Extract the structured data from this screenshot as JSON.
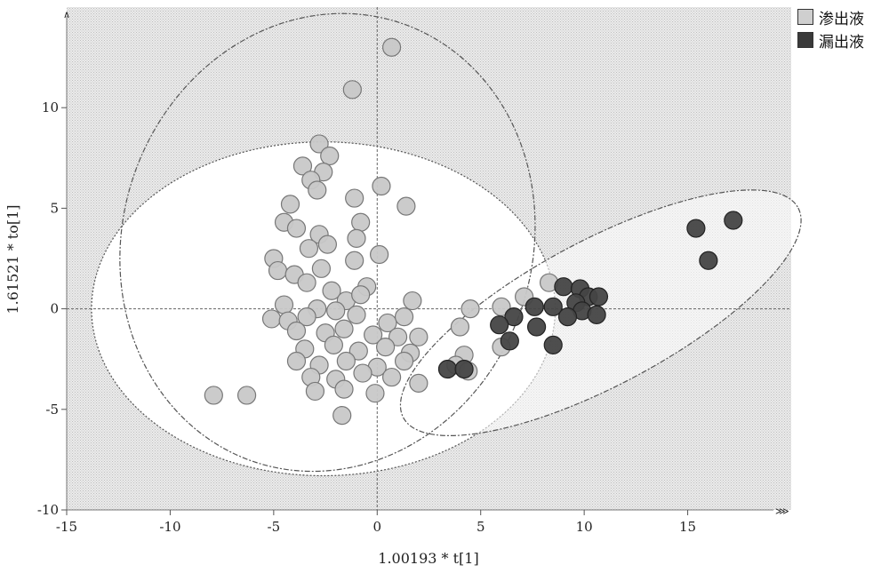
{
  "chart_data": {
    "type": "scatter",
    "title": "",
    "xlabel": "1.00193 * t[1]",
    "ylabel": "1.61521 * to[1]",
    "xlim": [
      -15,
      20
    ],
    "ylim": [
      -10,
      15
    ],
    "xticks": [
      -15,
      -10,
      -5,
      0,
      5,
      10,
      15
    ],
    "yticks": [
      -10,
      -5,
      0,
      5,
      10
    ],
    "grid": false,
    "legend_position": "top-right",
    "series": [
      {
        "name": "渗出液",
        "color": "#c8c8c8",
        "points": [
          [
            0.7,
            13.0
          ],
          [
            -1.2,
            10.9
          ],
          [
            -2.8,
            8.2
          ],
          [
            -2.3,
            7.6
          ],
          [
            -3.6,
            7.1
          ],
          [
            -2.6,
            6.8
          ],
          [
            -3.2,
            6.4
          ],
          [
            -2.9,
            5.9
          ],
          [
            -4.2,
            5.2
          ],
          [
            0.2,
            6.1
          ],
          [
            1.4,
            5.1
          ],
          [
            -1.1,
            5.5
          ],
          [
            -4.5,
            4.3
          ],
          [
            -3.9,
            4.0
          ],
          [
            -0.8,
            4.3
          ],
          [
            -2.8,
            3.7
          ],
          [
            -1.0,
            3.5
          ],
          [
            -2.4,
            3.2
          ],
          [
            -3.3,
            3.0
          ],
          [
            -5.0,
            2.5
          ],
          [
            -4.8,
            1.9
          ],
          [
            -4.0,
            1.7
          ],
          [
            -2.7,
            2.0
          ],
          [
            -1.1,
            2.4
          ],
          [
            0.1,
            2.7
          ],
          [
            -3.4,
            1.3
          ],
          [
            -2.2,
            0.9
          ],
          [
            -0.5,
            1.1
          ],
          [
            1.7,
            0.4
          ],
          [
            -4.5,
            0.2
          ],
          [
            -2.9,
            0.0
          ],
          [
            -1.5,
            0.4
          ],
          [
            -0.8,
            0.7
          ],
          [
            -3.4,
            -0.4
          ],
          [
            -2.0,
            -0.1
          ],
          [
            -5.1,
            -0.5
          ],
          [
            -4.3,
            -0.6
          ],
          [
            -1.0,
            -0.3
          ],
          [
            0.5,
            -0.7
          ],
          [
            1.3,
            -0.4
          ],
          [
            -3.9,
            -1.1
          ],
          [
            -2.5,
            -1.2
          ],
          [
            -1.6,
            -1.0
          ],
          [
            -0.2,
            -1.3
          ],
          [
            1.0,
            -1.4
          ],
          [
            2.0,
            -1.4
          ],
          [
            -3.5,
            -2.0
          ],
          [
            -2.1,
            -1.8
          ],
          [
            -0.9,
            -2.1
          ],
          [
            0.4,
            -1.9
          ],
          [
            1.6,
            -2.2
          ],
          [
            -3.9,
            -2.6
          ],
          [
            -2.8,
            -2.8
          ],
          [
            -1.5,
            -2.6
          ],
          [
            0.0,
            -2.9
          ],
          [
            1.3,
            -2.6
          ],
          [
            -3.2,
            -3.4
          ],
          [
            -2.0,
            -3.5
          ],
          [
            -0.7,
            -3.2
          ],
          [
            0.7,
            -3.4
          ],
          [
            2.0,
            -3.7
          ],
          [
            -3.0,
            -4.1
          ],
          [
            -1.6,
            -4.0
          ],
          [
            -0.1,
            -4.2
          ],
          [
            -1.7,
            -5.3
          ],
          [
            -7.9,
            -4.3
          ],
          [
            -6.3,
            -4.3
          ],
          [
            4.0,
            -0.9
          ],
          [
            4.2,
            -2.3
          ],
          [
            3.8,
            -2.8
          ],
          [
            4.4,
            -3.1
          ],
          [
            6.0,
            -1.9
          ],
          [
            6.0,
            0.1
          ],
          [
            7.1,
            0.6
          ],
          [
            8.3,
            1.3
          ],
          [
            4.5,
            0.0
          ]
        ]
      },
      {
        "name": "漏出液",
        "color": "#454545",
        "points": [
          [
            15.4,
            4.0
          ],
          [
            17.2,
            4.4
          ],
          [
            16.0,
            2.4
          ],
          [
            9.0,
            1.1
          ],
          [
            9.8,
            1.0
          ],
          [
            10.2,
            0.6
          ],
          [
            10.7,
            0.6
          ],
          [
            9.6,
            0.3
          ],
          [
            8.5,
            0.1
          ],
          [
            9.9,
            -0.1
          ],
          [
            10.6,
            -0.3
          ],
          [
            7.6,
            0.1
          ],
          [
            6.6,
            -0.4
          ],
          [
            9.2,
            -0.4
          ],
          [
            5.9,
            -0.8
          ],
          [
            7.7,
            -0.9
          ],
          [
            6.4,
            -1.6
          ],
          [
            8.5,
            -1.8
          ],
          [
            3.4,
            -3.0
          ],
          [
            4.2,
            -3.0
          ]
        ]
      }
    ]
  }
}
